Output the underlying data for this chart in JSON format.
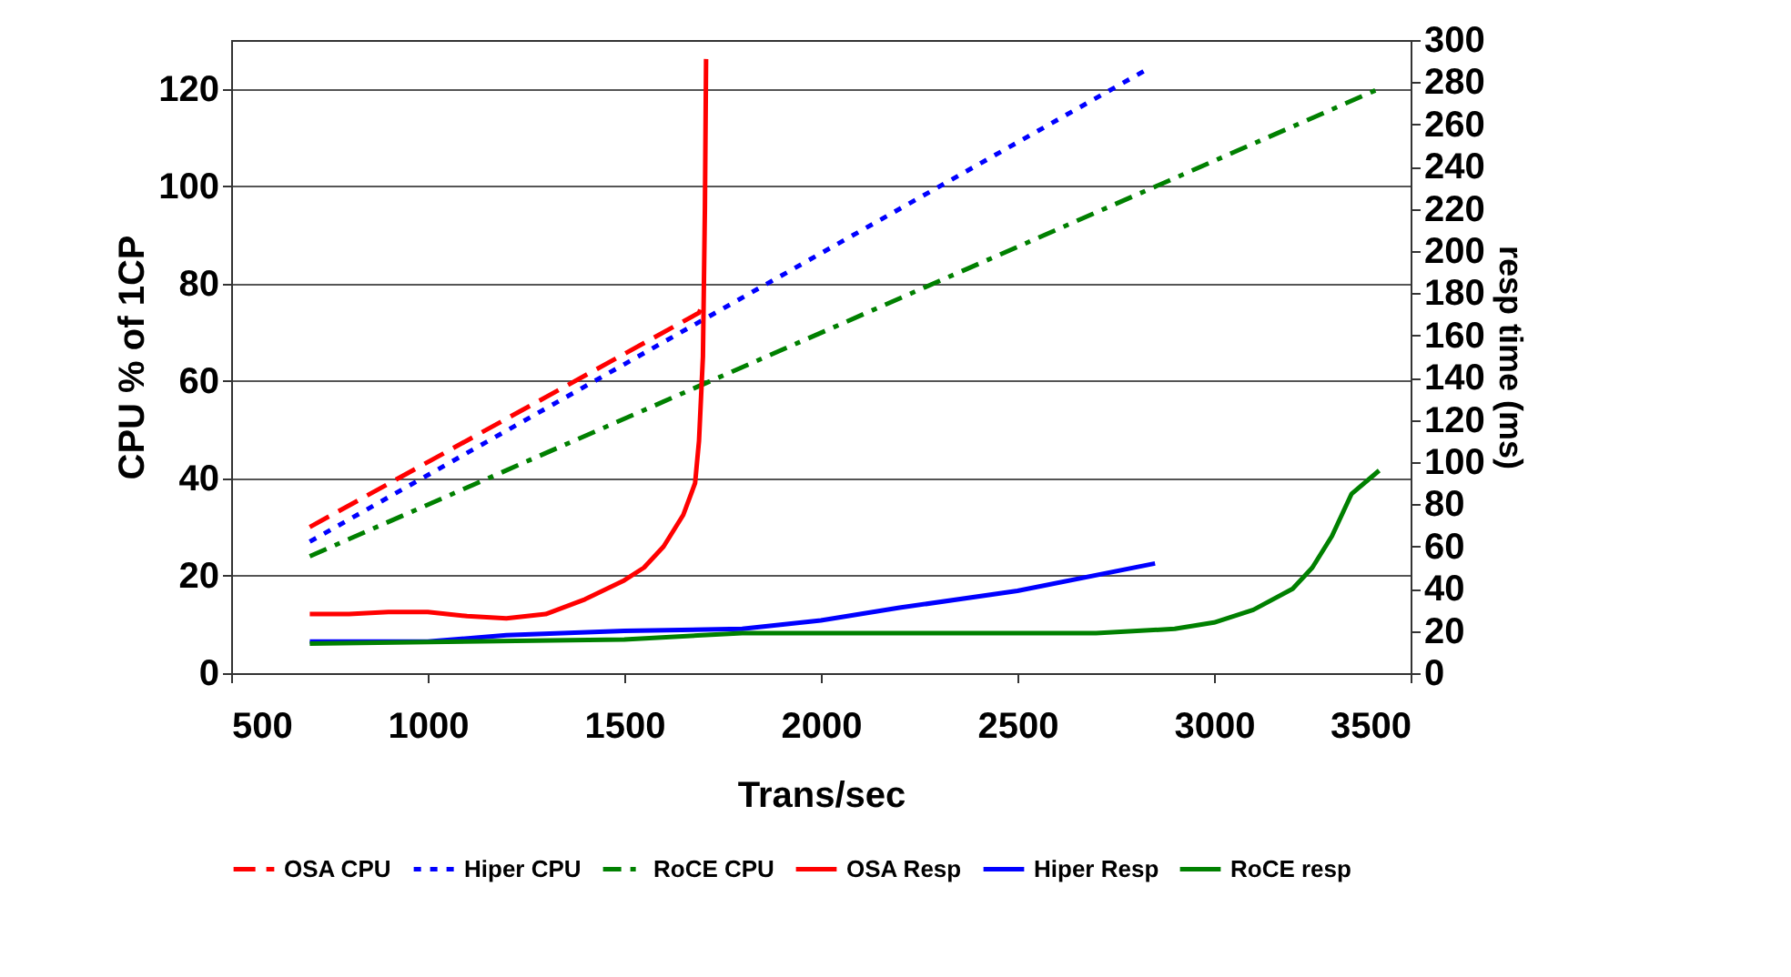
{
  "chart_data": {
    "type": "line",
    "xlabel": "Trans/sec",
    "ylabel": "CPU % of 1CP",
    "y2label": "resp time (ms)",
    "xlim": [
      500,
      3500
    ],
    "xticks": [
      500,
      1000,
      1500,
      2000,
      2500,
      3000,
      3500
    ],
    "ylim": [
      0,
      130
    ],
    "yticks": [
      0,
      20,
      40,
      60,
      80,
      100,
      120
    ],
    "y2lim": [
      0,
      300
    ],
    "y2ticks": [
      0,
      20,
      40,
      60,
      80,
      100,
      120,
      140,
      160,
      180,
      200,
      220,
      240,
      260,
      280,
      300
    ],
    "grid": "y",
    "legend": "bottom",
    "marker": "none",
    "series": [
      {
        "name": "OSA CPU",
        "color": "#ff0000",
        "line_style": "dashed",
        "x": [
          700,
          1690,
          1700
        ],
        "values": [
          30,
          74,
          76
        ]
      },
      {
        "name": "Hiper CPU",
        "color": "#0000ff",
        "line_style": "dotted",
        "x": [
          700,
          2830
        ],
        "values": [
          27,
          124
        ]
      },
      {
        "name": "RoCE CPU",
        "color": "#008000",
        "line_style": "dashdot",
        "x": [
          700,
          3420
        ],
        "values": [
          24,
          120
        ]
      },
      {
        "name": "OSA Resp",
        "color": "#ff0000",
        "line_style": "solid",
        "axis": "y2",
        "x": [
          700,
          800,
          900,
          1000,
          1100,
          1200,
          1300,
          1400,
          1500,
          1550,
          1600,
          1650,
          1680,
          1690,
          1700,
          1705,
          1708
        ],
        "values": [
          28,
          28,
          29,
          29,
          27,
          26,
          28,
          35,
          44,
          50,
          60,
          75,
          90,
          110,
          150,
          220,
          291
        ]
      },
      {
        "name": "Hiper Resp",
        "color": "#0000ff",
        "line_style": "solid",
        "axis": "y2",
        "x": [
          700,
          1000,
          1200,
          1500,
          1800,
          2000,
          2200,
          2500,
          2850
        ],
        "values": [
          15,
          15,
          18,
          20,
          21,
          25,
          31,
          39,
          52
        ]
      },
      {
        "name": "RoCE resp",
        "color": "#008000",
        "line_style": "solid",
        "axis": "y2",
        "x": [
          700,
          1500,
          1800,
          2000,
          2700,
          2900,
          3000,
          3100,
          3200,
          3250,
          3300,
          3350,
          3420
        ],
        "values": [
          14,
          16,
          19,
          19,
          19,
          21,
          24,
          30,
          40,
          50,
          65,
          85,
          96
        ]
      }
    ]
  }
}
